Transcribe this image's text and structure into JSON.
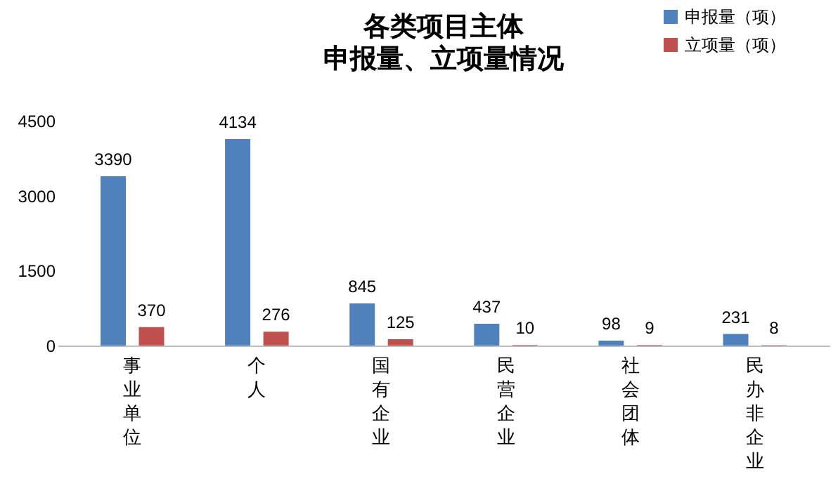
{
  "chart_data": {
    "type": "bar",
    "title": "各类项目主体",
    "subtitle": "申报量、立项量情况",
    "categories": [
      "事业单位",
      "个人",
      "国有企业",
      "民营企业",
      "社会团体",
      "民办非企业"
    ],
    "series": [
      {
        "name": "申报量（项）",
        "color": "#4f81bd",
        "values": [
          3390,
          4134,
          845,
          437,
          98,
          231
        ]
      },
      {
        "name": "立项量（项）",
        "color": "#c0504d",
        "values": [
          370,
          276,
          125,
          10,
          9,
          8
        ]
      }
    ],
    "ylim": [
      0,
      4500
    ],
    "yticks": [
      0,
      1500,
      3000,
      4500
    ],
    "grid": false,
    "legend": "top right",
    "data_labels": true
  }
}
